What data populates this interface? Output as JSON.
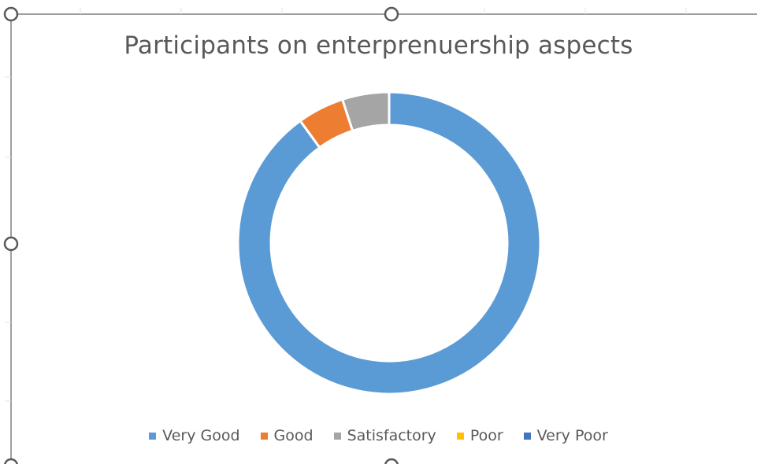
{
  "chart_data": {
    "type": "pie",
    "variant": "doughnut",
    "title": "Participants on enterprenuership aspects",
    "legend_position": "bottom",
    "categories": [
      "Very Good",
      "Good",
      "Satisfactory",
      "Poor",
      "Very Poor"
    ],
    "values": [
      90,
      5,
      5,
      0,
      0
    ],
    "colors": [
      "#5B9BD5",
      "#ED7D31",
      "#A5A5A5",
      "#FFC000",
      "#4472C4"
    ]
  }
}
